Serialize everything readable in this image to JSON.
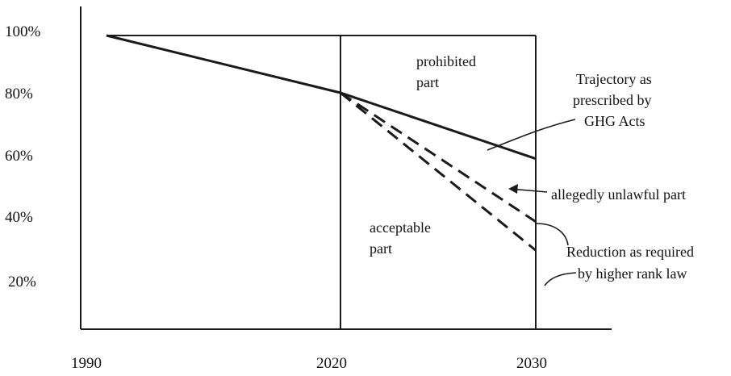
{
  "chart_data": {
    "type": "line",
    "x": [
      1990,
      2020,
      2030
    ],
    "xlim": [
      1990,
      2030
    ],
    "ylim": [
      0,
      100
    ],
    "x_ticks": [
      "1990",
      "2020",
      "2030"
    ],
    "y_ticks": [
      "100%",
      "80%",
      "60%",
      "40%",
      "20%"
    ],
    "series": [
      {
        "points": [
          [
            1990,
            100
          ],
          [
            2020,
            80
          ],
          [
            2030,
            57
          ]
        ],
        "style": "solid"
      },
      {
        "points": [
          [
            2020,
            80
          ],
          [
            2030,
            35
          ]
        ],
        "style": "dashed"
      },
      {
        "points": [
          [
            2020,
            80
          ],
          [
            2030,
            25
          ]
        ],
        "style": "dashed"
      }
    ],
    "regions": {
      "prohibited": [
        "prohibited",
        "part"
      ],
      "acceptable": [
        "acceptable",
        "part"
      ]
    },
    "annotations": {
      "trajectory": [
        "Trajectory as",
        "prescribed by",
        "GHG Acts"
      ],
      "unlawful": "allegedly  unlawful part",
      "reduction": [
        "Reduction as required",
        "by higher rank law"
      ]
    },
    "grid": false
  }
}
